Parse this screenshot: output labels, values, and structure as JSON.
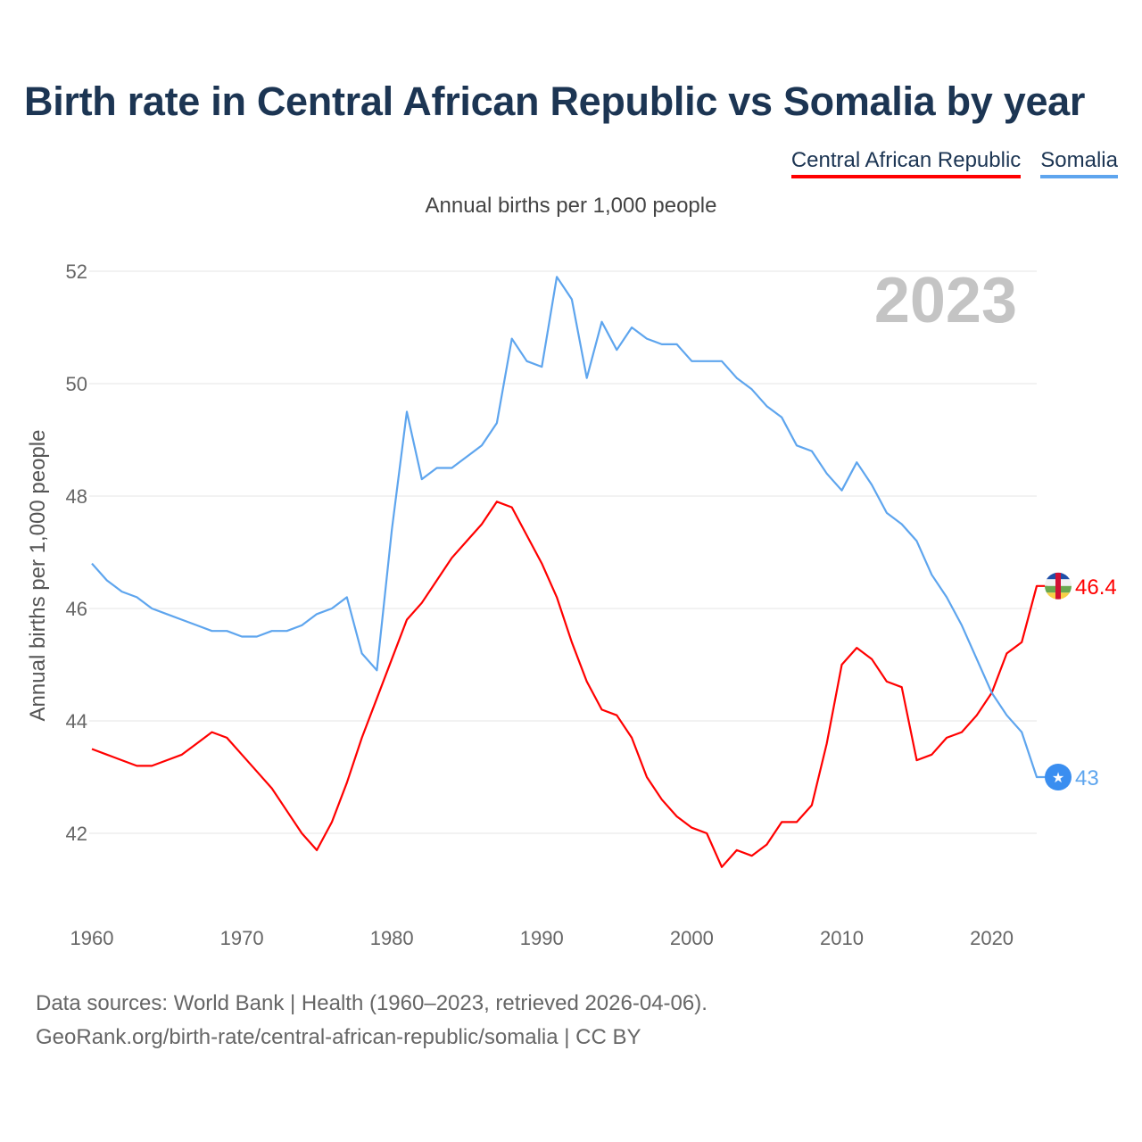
{
  "title": "Birth rate in Central African Republic vs Somalia by year",
  "legend": [
    "Central African Republic",
    "Somalia"
  ],
  "subtitle": "Annual births per 1,000 people",
  "year_watermark": "2023",
  "footer": {
    "line1": "Data sources: World Bank | Health (1960–2023, retrieved 2026-04-06).",
    "line2": "GeoRank.org/birth-rate/central-african-republic/somalia | CC BY"
  },
  "chart_data": {
    "type": "line",
    "title": "Birth rate in Central African Republic vs Somalia by year",
    "xlabel": "",
    "ylabel": "Annual births per 1,000 people",
    "xlim": [
      1960,
      2023
    ],
    "ylim": [
      41,
      52
    ],
    "x_ticks": [
      "1960",
      "1970",
      "1980",
      "1990",
      "2000",
      "2010",
      "2020"
    ],
    "y_ticks": [
      "42",
      "44",
      "46",
      "48",
      "50",
      "52"
    ],
    "grid": true,
    "legend_position": "top-right",
    "x_start": 1960,
    "series": [
      {
        "name": "Central African Republic",
        "color": "#ff0000",
        "end_label": "46.4",
        "values": [
          43.5,
          43.4,
          43.3,
          43.2,
          43.2,
          43.3,
          43.4,
          43.6,
          43.8,
          43.7,
          43.4,
          43.1,
          42.8,
          42.4,
          42.0,
          41.7,
          42.2,
          42.9,
          43.7,
          44.4,
          45.1,
          45.8,
          46.1,
          46.5,
          46.9,
          47.2,
          47.5,
          47.9,
          47.8,
          47.3,
          46.8,
          46.2,
          45.4,
          44.7,
          44.2,
          44.1,
          43.7,
          43.0,
          42.6,
          42.3,
          42.1,
          42.0,
          41.4,
          41.7,
          41.6,
          41.8,
          42.2,
          42.2,
          42.5,
          43.6,
          45.0,
          45.3,
          45.1,
          44.7,
          44.6,
          43.3,
          43.4,
          43.7,
          43.8,
          44.1,
          44.5,
          45.2,
          45.4,
          46.4
        ]
      },
      {
        "name": "Somalia",
        "color": "#5ea5ee",
        "end_label": "43",
        "values": [
          46.8,
          46.5,
          46.3,
          46.2,
          46.0,
          45.9,
          45.8,
          45.7,
          45.6,
          45.6,
          45.5,
          45.5,
          45.6,
          45.6,
          45.7,
          45.9,
          46.0,
          46.2,
          45.2,
          44.9,
          47.4,
          49.5,
          48.3,
          48.5,
          48.5,
          48.7,
          48.9,
          49.3,
          50.8,
          50.4,
          50.3,
          51.9,
          51.5,
          50.1,
          51.1,
          50.6,
          51.0,
          50.8,
          50.7,
          50.7,
          50.4,
          50.4,
          50.4,
          50.1,
          49.9,
          49.6,
          49.4,
          48.9,
          48.8,
          48.4,
          48.1,
          48.6,
          48.2,
          47.7,
          47.5,
          47.2,
          46.6,
          46.2,
          45.7,
          45.1,
          44.5,
          44.1,
          43.8,
          43.0
        ]
      }
    ]
  }
}
